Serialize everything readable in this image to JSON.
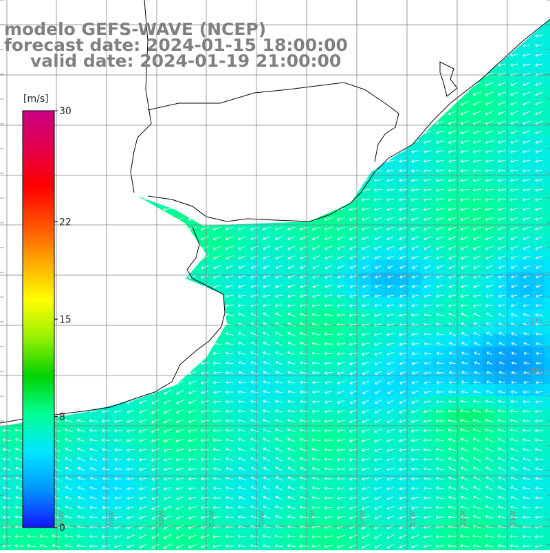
{
  "title": {
    "model": "modelo GEFS-WAVE (NCEP)",
    "forecast_date": "forecast date: 2024-01-15 18:00:00",
    "valid_date": "valid date: 2024-01-19 21:00:00"
  },
  "colorbar": {
    "unit": "[m/s]",
    "min": 0,
    "max": 30,
    "tick_labels": [
      {
        "value": 30,
        "text": "30"
      },
      {
        "value": 22,
        "text": "22"
      },
      {
        "value": 15,
        "text": "15"
      },
      {
        "value": 8,
        "text": "8"
      },
      {
        "value": 0,
        "text": "0"
      }
    ],
    "colors": [
      "#1414ff",
      "#0096ff",
      "#00e6ff",
      "#00ff96",
      "#00d200",
      "#96f000",
      "#ffff00",
      "#ffaa00",
      "#ff5000",
      "#ff0000",
      "#e6004b",
      "#c80082"
    ]
  },
  "grid": {
    "lat_labels": [
      "37S",
      "38S"
    ],
    "lon_labels": [
      "60W",
      "59W",
      "58W",
      "57W",
      "56W",
      "55W",
      "54W",
      "53W",
      "52W",
      "51W"
    ]
  },
  "colors": {
    "land": "#ffffff",
    "coast": "#000000",
    "grid": "#808080",
    "arrows": "#ffffff"
  }
}
